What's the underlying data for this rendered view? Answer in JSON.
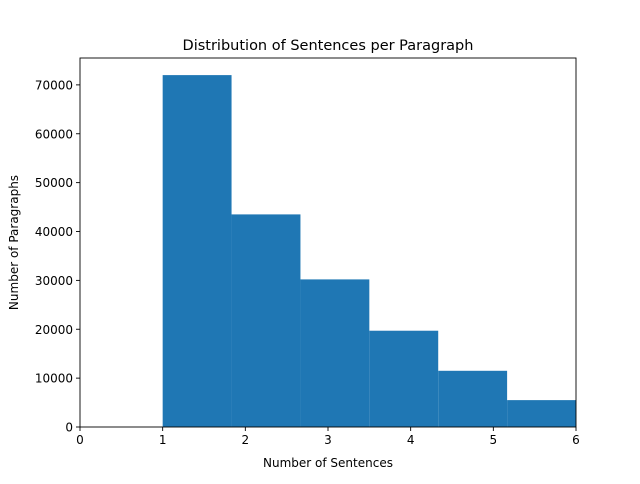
{
  "chart_data": {
    "type": "bar",
    "title": "Distribution of Sentences per Paragraph",
    "xlabel": "Number of Sentences",
    "ylabel": "Number of Paragraphs",
    "xlim": [
      0,
      6
    ],
    "ylim": [
      0,
      75500
    ],
    "x_ticks": [
      0,
      1,
      2,
      3,
      4,
      5,
      6
    ],
    "y_ticks": [
      0,
      10000,
      20000,
      30000,
      40000,
      50000,
      60000,
      70000
    ],
    "grid": false,
    "legend": "none",
    "bar_color": "#1f77b4",
    "bins": [
      {
        "x0": 1.0,
        "x1": 1.8333,
        "value": 72000
      },
      {
        "x0": 1.8333,
        "x1": 2.6667,
        "value": 43500
      },
      {
        "x0": 2.6667,
        "x1": 3.5,
        "value": 30200
      },
      {
        "x0": 3.5,
        "x1": 4.3333,
        "value": 19700
      },
      {
        "x0": 4.3333,
        "x1": 5.1667,
        "value": 11500
      },
      {
        "x0": 5.1667,
        "x1": 6.0,
        "value": 5500
      }
    ]
  }
}
